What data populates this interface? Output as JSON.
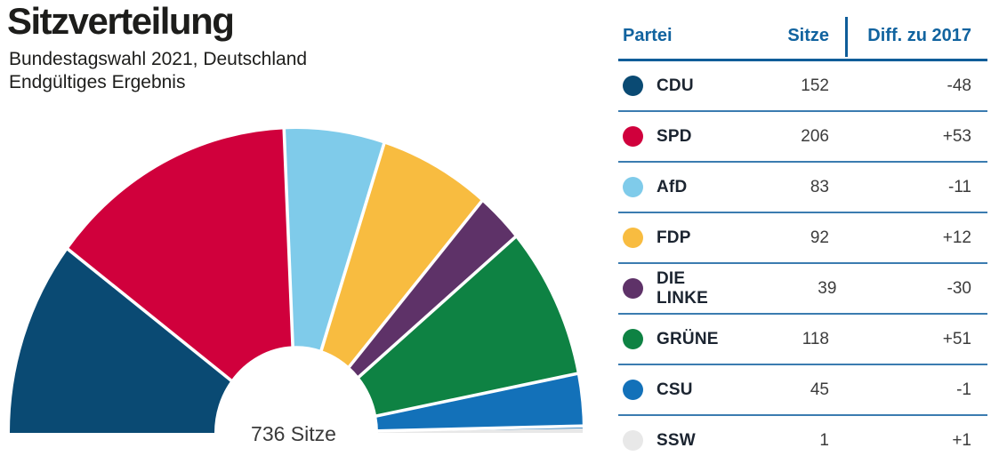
{
  "header": {
    "title": "Sitzverteilung",
    "subtitle1": "Bundestagswahl 2021, Deutschland",
    "subtitle2": "Endgültiges Ergebnis"
  },
  "chart_data": {
    "type": "pie",
    "variant": "half-donut-hemicycle",
    "title": "Sitzverteilung",
    "start_angle_deg": 180,
    "end_angle_deg": 0,
    "total_seats": 736,
    "center_label": "736 Sitze",
    "legend_position": "right-table",
    "parties": [
      {
        "name": "CDU",
        "seats": 152,
        "diff": "-48",
        "color": "#0a4a73"
      },
      {
        "name": "SPD",
        "seats": 206,
        "diff": "+53",
        "color": "#d0003c"
      },
      {
        "name": "AfD",
        "seats": 83,
        "diff": "-11",
        "color": "#7fcbea"
      },
      {
        "name": "FDP",
        "seats": 92,
        "diff": "+12",
        "color": "#f8bc40"
      },
      {
        "name": "DIE LINKE",
        "seats": 39,
        "diff": "-30",
        "color": "#5e3268"
      },
      {
        "name": "GRÜNE",
        "seats": 118,
        "diff": "+51",
        "color": "#0e8243"
      },
      {
        "name": "CSU",
        "seats": 45,
        "diff": "-1",
        "color": "#1371b9"
      },
      {
        "name": "SSW",
        "seats": 1,
        "diff": "+1",
        "color": "#e8e8e8"
      }
    ]
  },
  "table": {
    "headers": {
      "party": "Partei",
      "seats": "Sitze",
      "diff": "Diff. zu 2017"
    }
  },
  "colors": {
    "accent_blue": "#0e5d99",
    "header_text_blue": "#11639f",
    "row_line_blue": "#3b7cb0",
    "text_dark": "#1d1d1b",
    "number_gray": "#3c3c3c"
  }
}
